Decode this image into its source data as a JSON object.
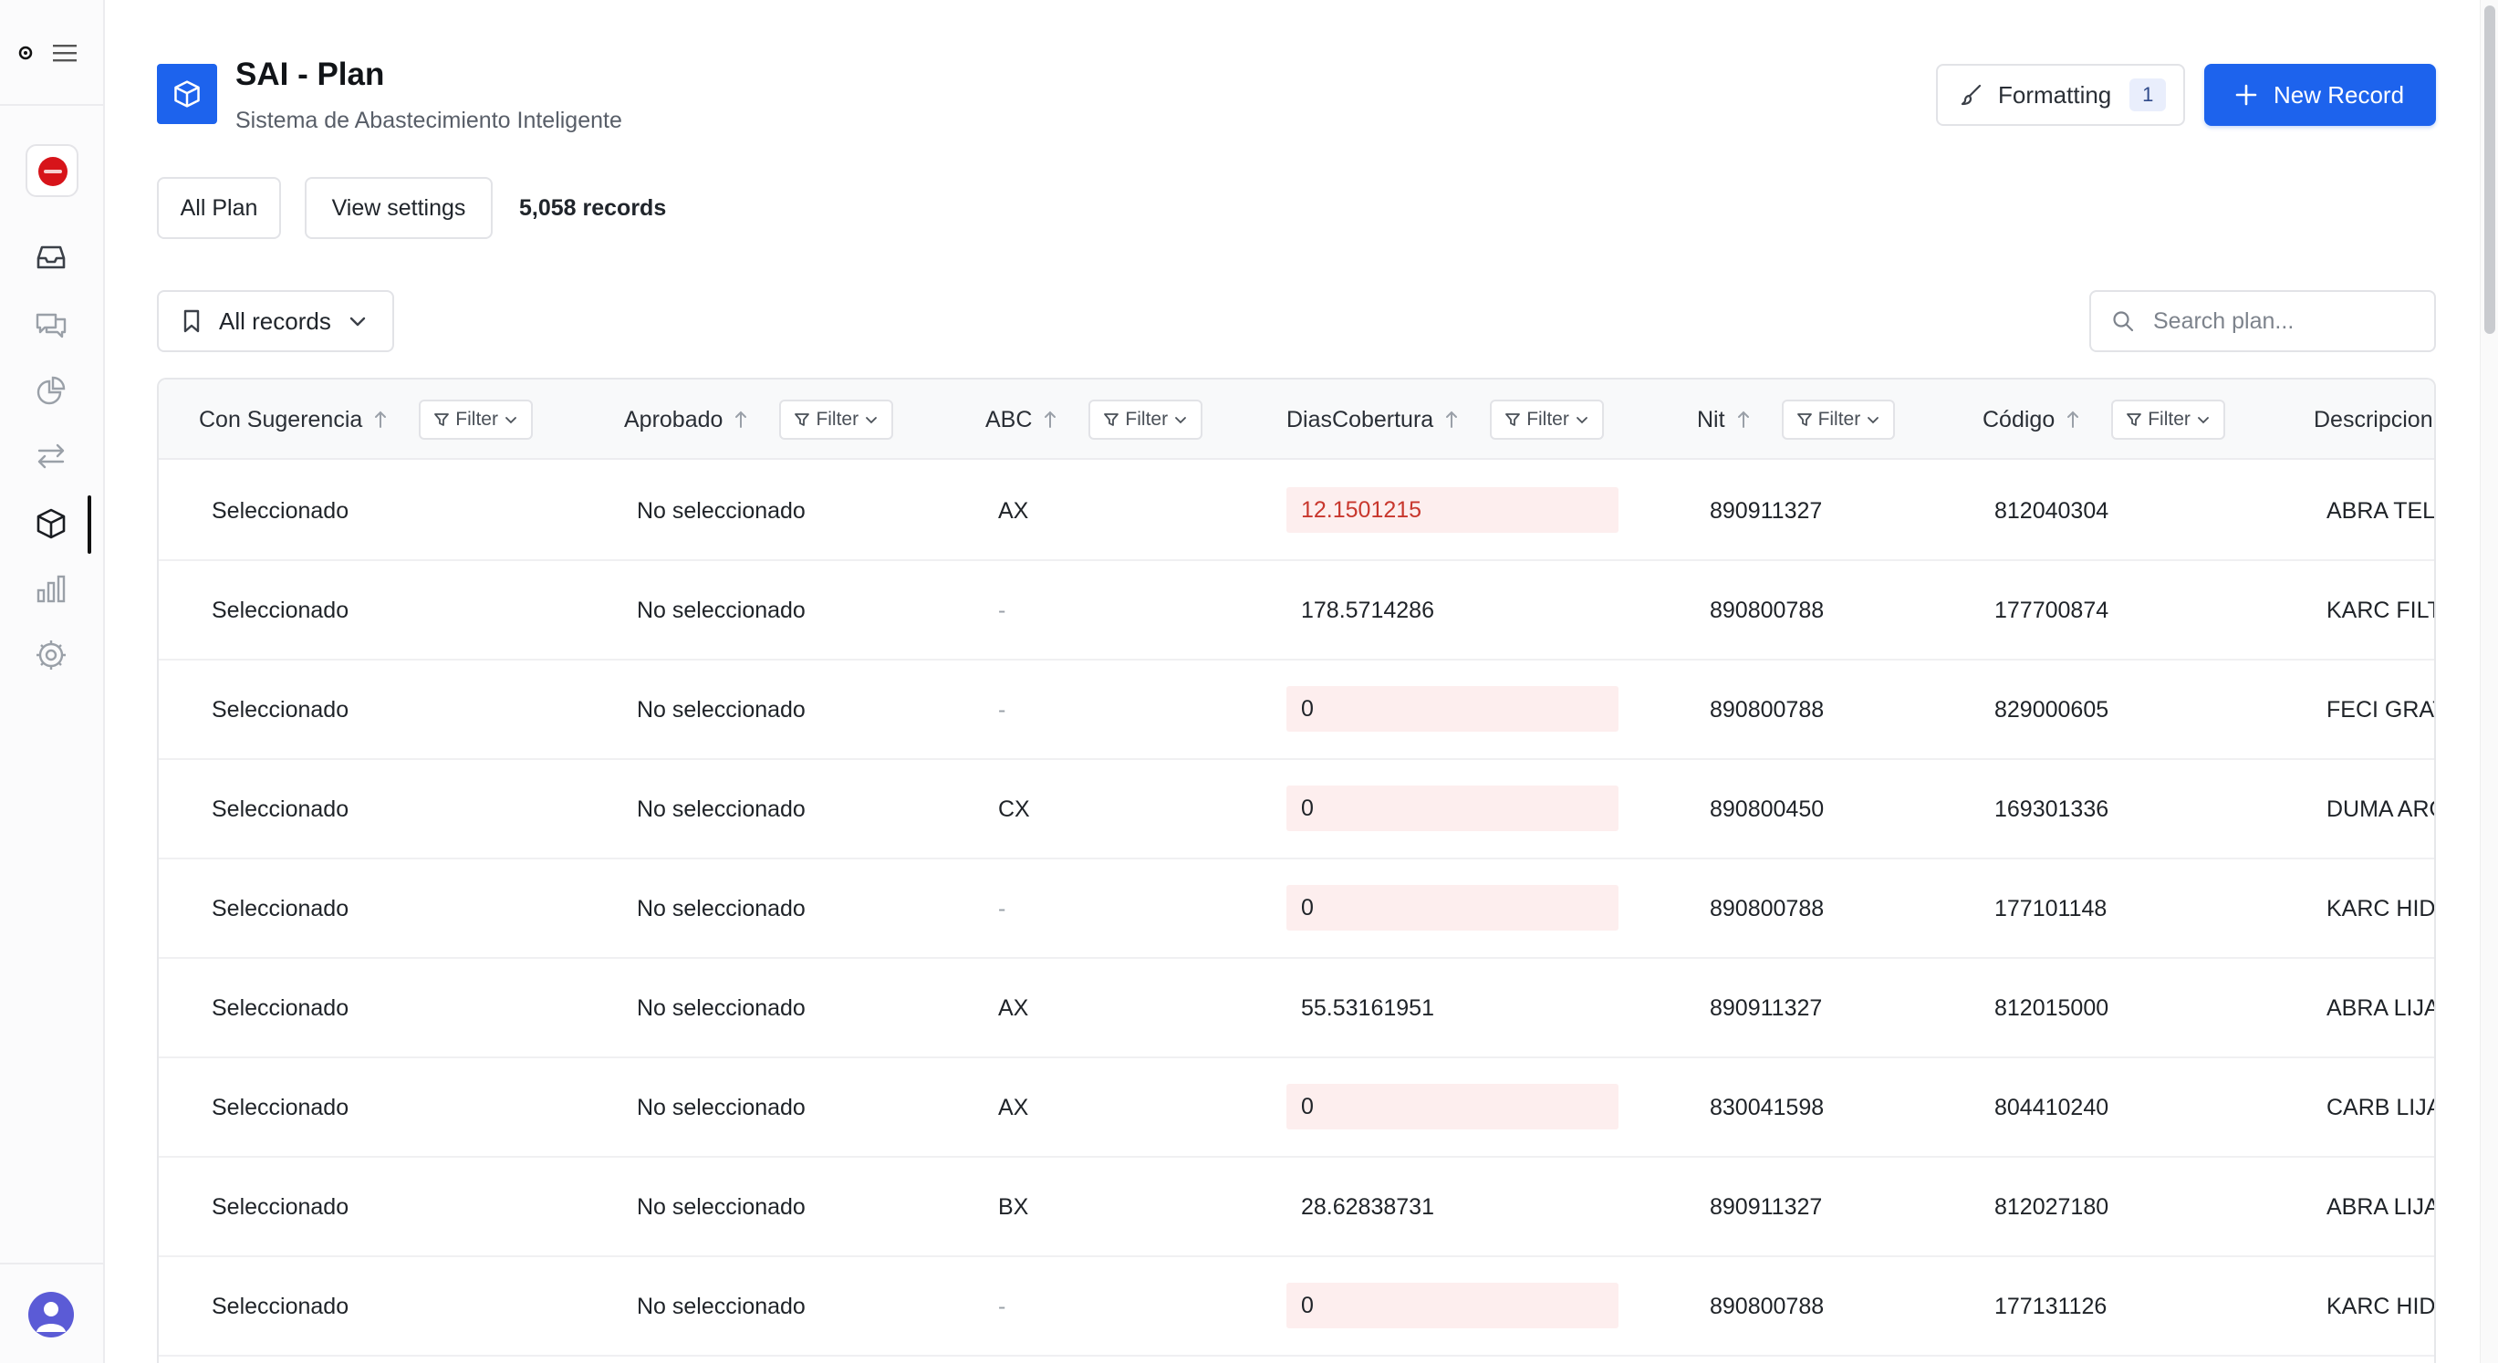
{
  "app": {
    "title": "SAI - Plan",
    "subtitle": "Sistema de Abastecimiento Inteligente"
  },
  "sidebar": {
    "items": [
      {
        "name": "inbox",
        "icon": "inbox-icon"
      },
      {
        "name": "chat",
        "icon": "chat-icon"
      },
      {
        "name": "analytics",
        "icon": "pie-chart-icon"
      },
      {
        "name": "transfers",
        "icon": "arrows-exchange-icon"
      },
      {
        "name": "plan",
        "icon": "cube-icon",
        "active": true
      },
      {
        "name": "reports",
        "icon": "bar-chart-icon"
      },
      {
        "name": "settings",
        "icon": "gear-icon"
      }
    ]
  },
  "header": {
    "formatting_label": "Formatting",
    "formatting_count": "1",
    "new_record_label": "New Record"
  },
  "toolbar": {
    "all_plan_label": "All Plan",
    "view_settings_label": "View settings",
    "records_count": "5,058 records",
    "all_records_label": "All records",
    "search_placeholder": "Search plan..."
  },
  "table": {
    "filter_label": "Filter",
    "columns": [
      "Con Sugerencia",
      "Aprobado",
      "ABC",
      "DiasCobertura",
      "Nit",
      "Código",
      "Descripcion"
    ],
    "rows": [
      {
        "sugerencia": "Seleccionado",
        "aprobado": "No seleccionado",
        "abc": "AX",
        "dias": "12.1501215",
        "dias_flag": "red",
        "nit": "890911327",
        "codigo": "812040304",
        "desc": "ABRA TELA"
      },
      {
        "sugerencia": "Seleccionado",
        "aprobado": "No seleccionado",
        "abc": "-",
        "dias": "178.5714286",
        "dias_flag": "none",
        "nit": "890800788",
        "codigo": "177700874",
        "desc": "KARC FILT"
      },
      {
        "sugerencia": "Seleccionado",
        "aprobado": "No seleccionado",
        "abc": "-",
        "dias": "0",
        "dias_flag": "pink",
        "nit": "890800788",
        "codigo": "829000605",
        "desc": "FECI GRAT"
      },
      {
        "sugerencia": "Seleccionado",
        "aprobado": "No seleccionado",
        "abc": "CX",
        "dias": "0",
        "dias_flag": "pink",
        "nit": "890800450",
        "codigo": "169301336",
        "desc": "DUMA ARO"
      },
      {
        "sugerencia": "Seleccionado",
        "aprobado": "No seleccionado",
        "abc": "-",
        "dias": "0",
        "dias_flag": "pink",
        "nit": "890800788",
        "codigo": "177101148",
        "desc": "KARC HIDR"
      },
      {
        "sugerencia": "Seleccionado",
        "aprobado": "No seleccionado",
        "abc": "AX",
        "dias": "55.53161951",
        "dias_flag": "none",
        "nit": "890911327",
        "codigo": "812015000",
        "desc": "ABRA LIJA"
      },
      {
        "sugerencia": "Seleccionado",
        "aprobado": "No seleccionado",
        "abc": "AX",
        "dias": "0",
        "dias_flag": "pink",
        "nit": "830041598",
        "codigo": "804410240",
        "desc": "CARB LIJA"
      },
      {
        "sugerencia": "Seleccionado",
        "aprobado": "No seleccionado",
        "abc": "BX",
        "dias": "28.62838731",
        "dias_flag": "none",
        "nit": "890911327",
        "codigo": "812027180",
        "desc": "ABRA LIJA"
      },
      {
        "sugerencia": "Seleccionado",
        "aprobado": "No seleccionado",
        "abc": "-",
        "dias": "0",
        "dias_flag": "pink",
        "nit": "890800788",
        "codigo": "177131126",
        "desc": "KARC HIDR"
      }
    ]
  },
  "colors": {
    "accent": "#1d63ed",
    "highlight_bg": "#fdeeee",
    "highlight_text": "#c8372d"
  }
}
